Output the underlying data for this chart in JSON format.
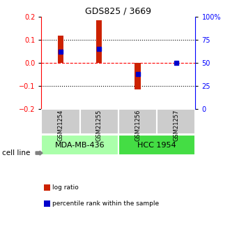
{
  "title": "GDS825 / 3669",
  "samples": [
    "GSM21254",
    "GSM21255",
    "GSM21256",
    "GSM21257"
  ],
  "log_ratios": [
    0.12,
    0.185,
    -0.115,
    0.001
  ],
  "percentile_ranks": [
    62,
    65,
    38,
    50
  ],
  "cell_lines": [
    {
      "label": "MDA-MB-436",
      "samples": [
        0,
        1
      ],
      "color": "#aaffaa"
    },
    {
      "label": "HCC 1954",
      "samples": [
        2,
        3
      ],
      "color": "#44dd44"
    }
  ],
  "bar_color": "#cc2200",
  "dot_color": "#0000cc",
  "ylim": [
    -0.2,
    0.2
  ],
  "y2lim": [
    0,
    100
  ],
  "yticks_left": [
    -0.2,
    -0.1,
    0.0,
    0.1,
    0.2
  ],
  "yticks_right": [
    0,
    25,
    50,
    75,
    100
  ],
  "ytick_labels_right": [
    "0",
    "25",
    "50",
    "75",
    "100%"
  ],
  "hlines_dotted": [
    0.1,
    -0.1
  ],
  "hline_dashed_color": "red",
  "bar_width": 0.15,
  "dot_size": 5,
  "legend_items": [
    {
      "color": "#cc2200",
      "label": "log ratio"
    },
    {
      "color": "#0000cc",
      "label": "percentile rank within the sample"
    }
  ],
  "sample_box_color": "#cccccc",
  "sample_box_edge": "#999999",
  "title_fontsize": 9,
  "tick_fontsize": 7,
  "sample_fontsize": 6,
  "cell_line_fontsize": 8
}
